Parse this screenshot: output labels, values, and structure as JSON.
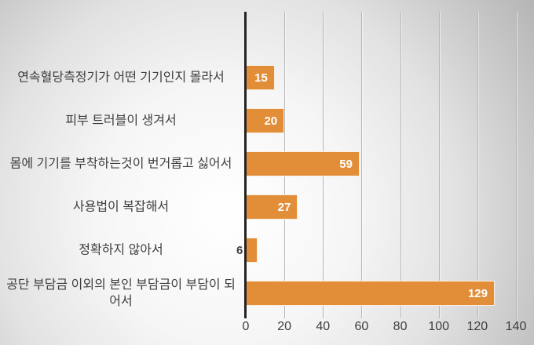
{
  "chart_data": {
    "type": "bar",
    "orientation": "horizontal",
    "title": "",
    "xlabel": "",
    "ylabel": "",
    "categories": [
      "연속혈당측정기가 어떤 기기인지 몰라서",
      "피부 트러블이 생겨서",
      "몸에 기기를 부착하는것이 번거롭고 싫어서",
      "사용법이 복잡해서",
      "정확하지 않아서",
      "공단 부담금 이외의 본인 부담금이 부담이 되어서"
    ],
    "values": [
      15,
      20,
      59,
      27,
      6,
      129
    ],
    "xlim": [
      0,
      140
    ],
    "x_ticks": [
      0,
      20,
      40,
      60,
      80,
      100,
      120,
      140
    ],
    "x_tick_labels": [
      "0",
      "20",
      "40",
      "60",
      "80",
      "100",
      "120",
      "140"
    ],
    "grid": true,
    "legend": false,
    "data_label_position": "inside-end",
    "colors": {
      "bar_fill": "#e28e38",
      "bar_outline": "#f7efe2",
      "data_label_inside": "#ffffff",
      "data_label_outside": "#3f3f3f",
      "axis_line": "#242424",
      "gridline": "#b5b5b5",
      "text": "#3d3d3d"
    }
  }
}
